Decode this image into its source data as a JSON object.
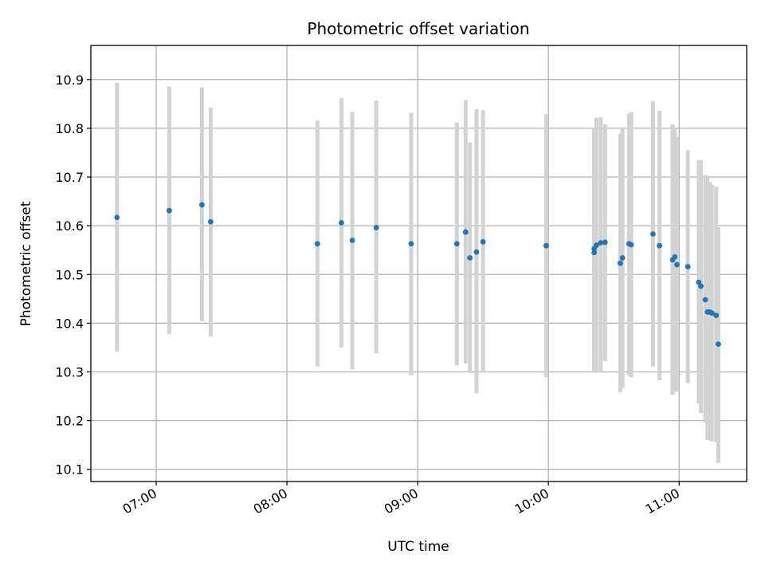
{
  "chart_data": {
    "type": "scatter",
    "title": "Photometric offset variation",
    "xlabel": "UTC time",
    "ylabel": "Photometric offset",
    "x_unit": "UTC time of day",
    "xlim": [
      "06:30",
      "11:31"
    ],
    "ylim": [
      10.075,
      10.97
    ],
    "x_ticks": [
      "07:00",
      "08:00",
      "09:00",
      "10:00",
      "11:00"
    ],
    "y_ticks": [
      "10.1",
      "10.2",
      "10.3",
      "10.4",
      "10.5",
      "10.6",
      "10.7",
      "10.8",
      "10.9"
    ],
    "grid": true,
    "legend": "none",
    "colors": {
      "points": "#1f77b4",
      "error_bars": "#d3d3d3",
      "grid": "#b0b0b0"
    },
    "series": [
      {
        "points": [
          {
            "x": "06:42",
            "y": 10.617,
            "ymin": 10.342,
            "ymax": 10.893
          },
          {
            "x": "07:06",
            "y": 10.631,
            "ymin": 10.378,
            "ymax": 10.886
          },
          {
            "x": "07:21",
            "y": 10.643,
            "ymin": 10.404,
            "ymax": 10.884
          },
          {
            "x": "07:25",
            "y": 10.608,
            "ymin": 10.373,
            "ymax": 10.842
          },
          {
            "x": "08:14",
            "y": 10.563,
            "ymin": 10.311,
            "ymax": 10.816
          },
          {
            "x": "08:25",
            "y": 10.606,
            "ymin": 10.35,
            "ymax": 10.862
          },
          {
            "x": "08:30",
            "y": 10.57,
            "ymin": 10.305,
            "ymax": 10.834
          },
          {
            "x": "08:41",
            "y": 10.596,
            "ymin": 10.338,
            "ymax": 10.857
          },
          {
            "x": "08:57",
            "y": 10.563,
            "ymin": 10.293,
            "ymax": 10.832
          },
          {
            "x": "09:18",
            "y": 10.563,
            "ymin": 10.313,
            "ymax": 10.812
          },
          {
            "x": "09:22",
            "y": 10.587,
            "ymin": 10.317,
            "ymax": 10.858
          },
          {
            "x": "09:24",
            "y": 10.534,
            "ymin": 10.298,
            "ymax": 10.771
          },
          {
            "x": "09:27",
            "y": 10.546,
            "ymin": 10.256,
            "ymax": 10.839
          },
          {
            "x": "09:30",
            "y": 10.567,
            "ymin": 10.298,
            "ymax": 10.837
          },
          {
            "x": "09:59",
            "y": 10.559,
            "ymin": 10.289,
            "ymax": 10.829
          },
          {
            "x": "10:21",
            "y": 10.545,
            "ymin": 10.302,
            "ymax": 10.793
          },
          {
            "x": "10:21",
            "y": 10.553,
            "ymin": 10.306,
            "ymax": 10.801
          },
          {
            "x": "10:22",
            "y": 10.56,
            "ymin": 10.302,
            "ymax": 10.822
          },
          {
            "x": "10:24",
            "y": 10.565,
            "ymin": 10.302,
            "ymax": 10.823
          },
          {
            "x": "10:26",
            "y": 10.566,
            "ymin": 10.322,
            "ymax": 10.808
          },
          {
            "x": "10:33",
            "y": 10.523,
            "ymin": 10.258,
            "ymax": 10.789
          },
          {
            "x": "10:34",
            "y": 10.534,
            "ymin": 10.266,
            "ymax": 10.802
          },
          {
            "x": "10:37",
            "y": 10.563,
            "ymin": 10.293,
            "ymax": 10.83
          },
          {
            "x": "10:38",
            "y": 10.561,
            "ymin": 10.289,
            "ymax": 10.833
          },
          {
            "x": "10:48",
            "y": 10.583,
            "ymin": 10.311,
            "ymax": 10.856
          },
          {
            "x": "10:51",
            "y": 10.559,
            "ymin": 10.283,
            "ymax": 10.836
          },
          {
            "x": "10:57",
            "y": 10.53,
            "ymin": 10.253,
            "ymax": 10.808
          },
          {
            "x": "10:58",
            "y": 10.536,
            "ymin": 10.262,
            "ymax": 10.799
          },
          {
            "x": "10:59",
            "y": 10.52,
            "ymin": 10.259,
            "ymax": 10.782
          },
          {
            "x": "11:04",
            "y": 10.516,
            "ymin": 10.277,
            "ymax": 10.755
          },
          {
            "x": "11:09",
            "y": 10.484,
            "ymin": 10.235,
            "ymax": 10.735
          },
          {
            "x": "11:10",
            "y": 10.476,
            "ymin": 10.215,
            "ymax": 10.735
          },
          {
            "x": "11:12",
            "y": 10.448,
            "ymin": 10.196,
            "ymax": 10.704
          },
          {
            "x": "11:13",
            "y": 10.423,
            "ymin": 10.16,
            "ymax": 10.699
          },
          {
            "x": "11:14",
            "y": 10.423,
            "ymin": 10.16,
            "ymax": 10.69
          },
          {
            "x": "11:15",
            "y": 10.421,
            "ymin": 10.157,
            "ymax": 10.684
          },
          {
            "x": "11:17",
            "y": 10.416,
            "ymin": 10.156,
            "ymax": 10.68
          },
          {
            "x": "11:18",
            "y": 10.357,
            "ymin": 10.113,
            "ymax": 10.597
          }
        ]
      }
    ]
  }
}
